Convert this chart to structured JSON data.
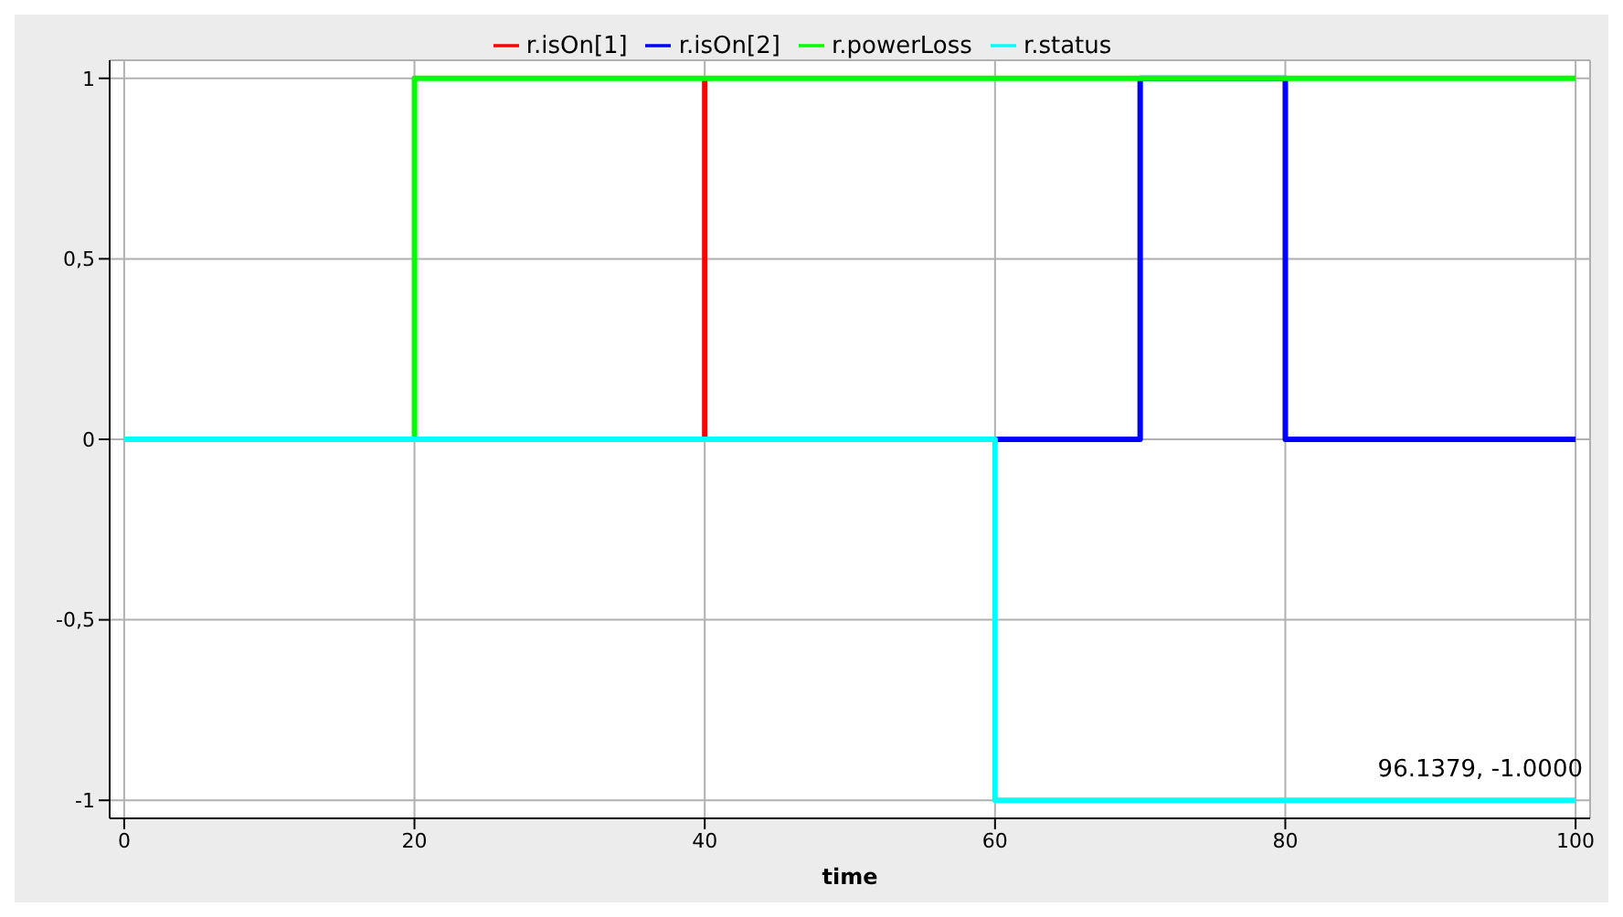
{
  "chart_data": {
    "type": "step",
    "xlabel": "time",
    "xlim": [
      -1,
      101
    ],
    "ylim": [
      -1.05,
      1.05
    ],
    "xticks": [
      0,
      20,
      40,
      60,
      80,
      100
    ],
    "yticks": [
      {
        "value": -1,
        "label": "-1"
      },
      {
        "value": -0.5,
        "label": "-0,5"
      },
      0,
      {
        "value": 0.5,
        "label": "0,5"
      },
      1
    ],
    "grid": true,
    "legend": "top",
    "marker": "none",
    "line_style": "solid",
    "series": [
      {
        "name": "r.isOn[1]",
        "color": "#ff0000",
        "x": [
          40,
          40
        ],
        "values": [
          0,
          1
        ]
      },
      {
        "name": "r.isOn[2]",
        "color": "#0000ff",
        "x": [
          60,
          70,
          80,
          100
        ],
        "values": [
          0,
          1,
          0,
          0
        ]
      },
      {
        "name": "r.powerLoss",
        "color": "#00ff00",
        "x": [
          0,
          20,
          100
        ],
        "values": [
          0,
          1,
          1
        ]
      },
      {
        "name": "r.status",
        "color": "#00ffff",
        "x": [
          0,
          60,
          100
        ],
        "values": [
          0,
          -1,
          -1
        ]
      }
    ],
    "annotations": [
      "96.1379, -1.0000"
    ]
  }
}
